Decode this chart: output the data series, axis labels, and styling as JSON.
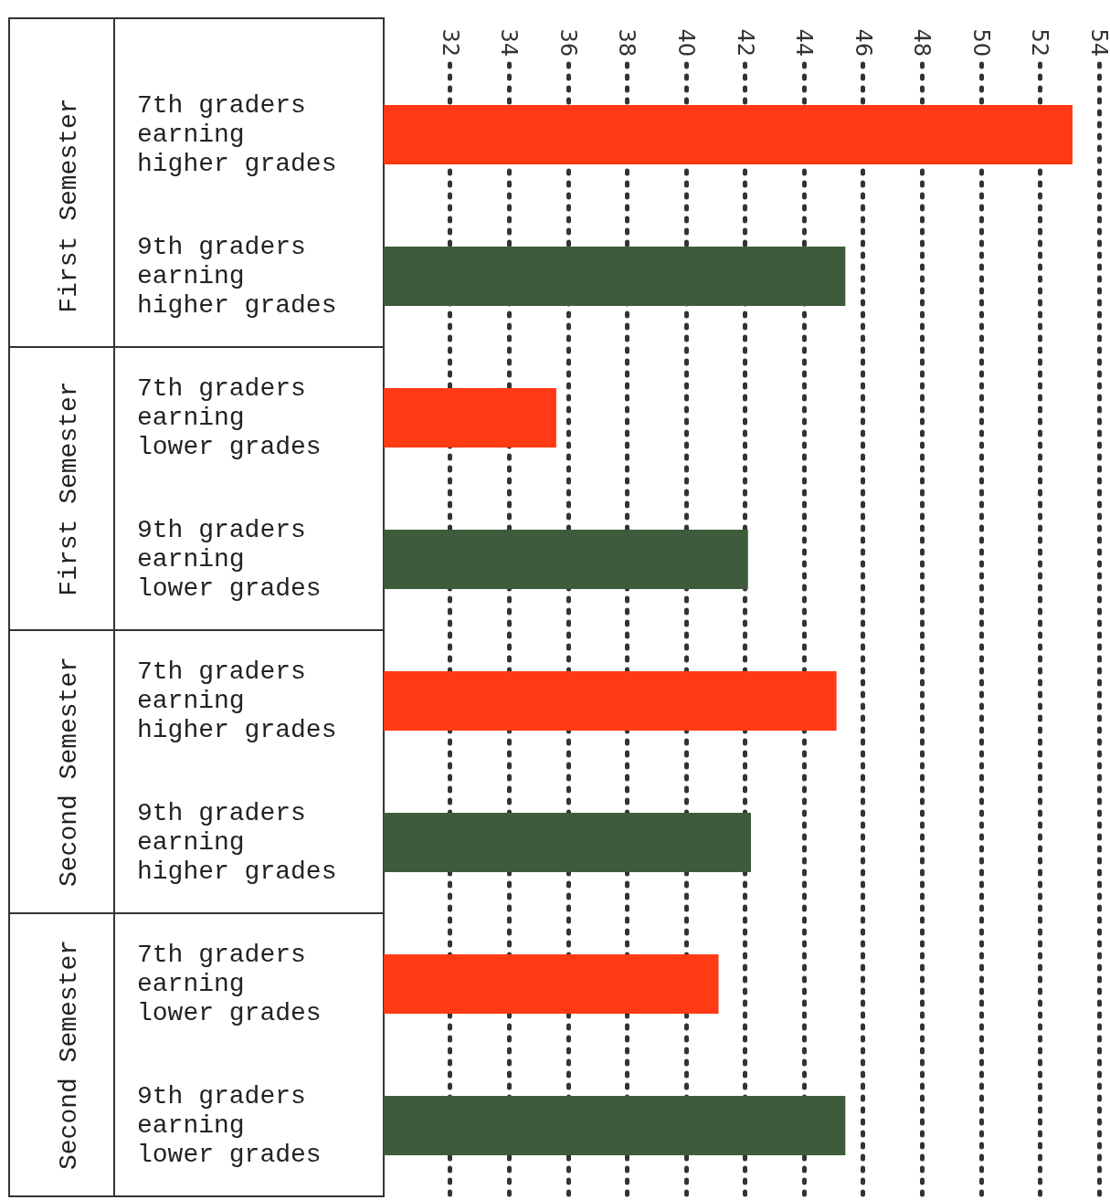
{
  "chart_data": {
    "type": "bar",
    "orientation": "horizontal",
    "categories": [
      "7th graders earning higher grades",
      "9th graders earning higher grades",
      "7th graders earning lower grades",
      "9th graders earning lower grades",
      "7th graders earning higher grades",
      "9th graders earning higher grades",
      "7th graders earning lower grades",
      "9th graders earning lower grades"
    ],
    "values": [
      53.1,
      45.4,
      35.6,
      42.1,
      45.1,
      42.2,
      41.1,
      45.4
    ],
    "colors": [
      "#ff3a14",
      "#3e5c3c",
      "#ff3a14",
      "#3e5c3c",
      "#ff3a14",
      "#3e5c3c",
      "#ff3a14",
      "#3e5c3c"
    ],
    "xlim": [
      29.75,
      54
    ],
    "xticks": [
      32,
      34,
      36,
      38,
      40,
      42,
      44,
      46,
      48,
      50,
      52,
      54
    ],
    "annotations": [
      "First Semester",
      "First Semester",
      "Second Semester",
      "Second Semester"
    ],
    "grid": "x"
  }
}
